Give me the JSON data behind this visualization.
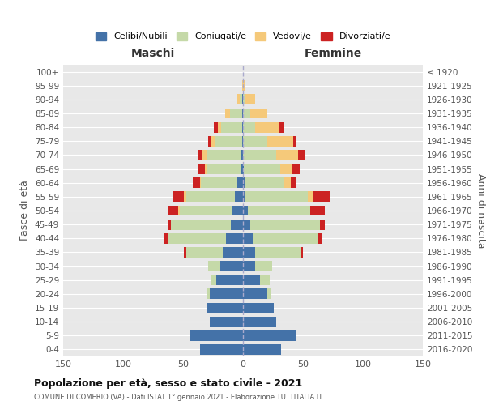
{
  "age_groups": [
    "100+",
    "95-99",
    "90-94",
    "85-89",
    "80-84",
    "75-79",
    "70-74",
    "65-69",
    "60-64",
    "55-59",
    "50-54",
    "45-49",
    "40-44",
    "35-39",
    "30-34",
    "25-29",
    "20-24",
    "15-19",
    "10-14",
    "5-9",
    "0-4"
  ],
  "birth_years": [
    "≤ 1920",
    "1921-1925",
    "1926-1930",
    "1931-1935",
    "1936-1940",
    "1941-1945",
    "1946-1950",
    "1951-1955",
    "1956-1960",
    "1961-1965",
    "1966-1970",
    "1971-1975",
    "1976-1980",
    "1981-1985",
    "1986-1990",
    "1991-1995",
    "1996-2000",
    "2001-2005",
    "2006-2010",
    "2011-2015",
    "2016-2020"
  ],
  "male": {
    "celibi": [
      0,
      0,
      1,
      1,
      1,
      1,
      2,
      2,
      5,
      7,
      9,
      10,
      14,
      17,
      19,
      22,
      28,
      30,
      28,
      44,
      36
    ],
    "coniugati": [
      0,
      0,
      2,
      10,
      17,
      22,
      28,
      28,
      30,
      40,
      44,
      50,
      48,
      30,
      10,
      5,
      2,
      0,
      0,
      0,
      0
    ],
    "vedovi": [
      0,
      1,
      2,
      4,
      3,
      4,
      4,
      2,
      1,
      2,
      1,
      0,
      0,
      0,
      0,
      0,
      0,
      0,
      0,
      0,
      0
    ],
    "divorziati": [
      0,
      0,
      0,
      0,
      3,
      2,
      4,
      6,
      6,
      10,
      9,
      2,
      4,
      2,
      0,
      0,
      0,
      0,
      0,
      0,
      0
    ]
  },
  "female": {
    "nubili": [
      0,
      0,
      0,
      0,
      0,
      0,
      0,
      1,
      2,
      2,
      4,
      6,
      8,
      10,
      10,
      14,
      20,
      26,
      28,
      44,
      32
    ],
    "coniugate": [
      0,
      0,
      2,
      6,
      10,
      20,
      28,
      30,
      32,
      52,
      52,
      58,
      54,
      38,
      14,
      8,
      3,
      0,
      0,
      0,
      0
    ],
    "vedove": [
      0,
      2,
      8,
      14,
      20,
      22,
      18,
      10,
      6,
      4,
      0,
      0,
      0,
      0,
      0,
      0,
      0,
      0,
      0,
      0,
      0
    ],
    "divorziate": [
      0,
      0,
      0,
      0,
      4,
      2,
      6,
      6,
      4,
      14,
      12,
      4,
      4,
      2,
      0,
      0,
      0,
      0,
      0,
      0,
      0
    ]
  },
  "colors": {
    "celibi": "#4472a8",
    "coniugati": "#c5d9a8",
    "vedovi": "#f5c97a",
    "divorziati": "#cc2222"
  },
  "xlim": 150,
  "title": "Popolazione per età, sesso e stato civile - 2021",
  "subtitle": "COMUNE DI COMERIO (VA) - Dati ISTAT 1° gennaio 2021 - Elaborazione TUTTITALIA.IT",
  "ylabel_left": "Fasce di età",
  "ylabel_right": "Anni di nascita",
  "xlabel_maschi": "Maschi",
  "xlabel_femmine": "Femmine",
  "legend_labels": [
    "Celibi/Nubili",
    "Coniugati/e",
    "Vedovi/e",
    "Divorziati/e"
  ],
  "bg_color": "#eeeeee",
  "plot_bg_color": "#e8e8e8"
}
